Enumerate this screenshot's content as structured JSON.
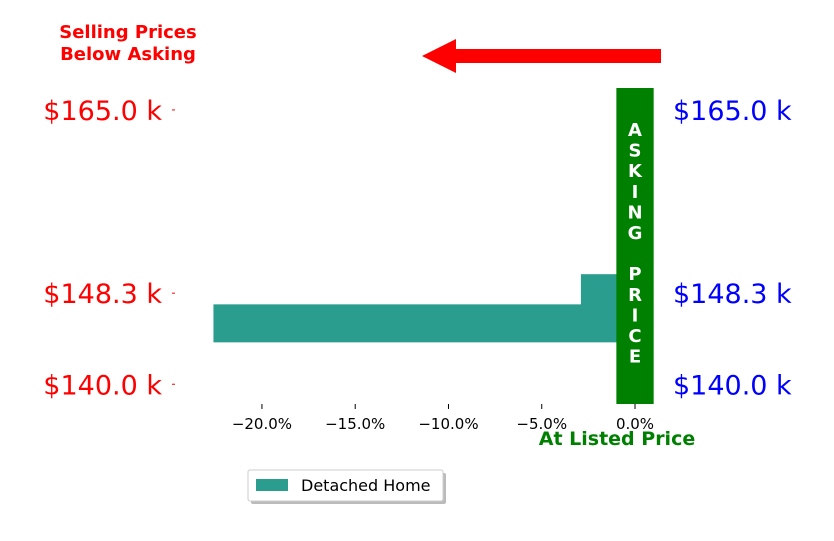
{
  "chart_data": {
    "type": "bar",
    "orientation": "horizontal",
    "title_lines": [
      "Selling Prices",
      "Below Asking"
    ],
    "xlabel": "At Listed Price",
    "xlim": [
      -24.5,
      1.5
    ],
    "ylim": [
      138.2,
      167.0
    ],
    "x_ticks": [
      -20,
      -15,
      -10,
      -5,
      0
    ],
    "x_tick_labels": [
      "−20.0%",
      "−15.0%",
      "−10.0%",
      "−5.0%",
      "0.0%"
    ],
    "y_ticks": [
      140.0,
      148.3,
      165.0
    ],
    "y_tick_labels_left": [
      "$140.0 k",
      "$148.3 k",
      "$165.0 k"
    ],
    "y_tick_labels_right": [
      "$140.0 k",
      "$148.3 k",
      "$165.0 k"
    ],
    "series": [
      {
        "name": "Detached Home",
        "bars": [
          {
            "y": 148.3,
            "value": -2.9
          },
          {
            "y": 145.55,
            "value": -22.6
          }
        ]
      }
    ],
    "band_label_letters": [
      "A",
      "S",
      "K",
      "I",
      "N",
      "G",
      "",
      "P",
      "R",
      "I",
      "C",
      "E"
    ],
    "band_x_range": [
      -1.0,
      1.0
    ],
    "arrow_direction": "left",
    "legend_position": "bottom-center",
    "grid": false
  },
  "colors": {
    "bar": "#2a9d8f",
    "band": "#008000",
    "left_labels": "#ff0000",
    "right_labels": "#0000ff",
    "title": "#ff0000",
    "arrow": "#ff0000",
    "xlabel": "#008000"
  }
}
